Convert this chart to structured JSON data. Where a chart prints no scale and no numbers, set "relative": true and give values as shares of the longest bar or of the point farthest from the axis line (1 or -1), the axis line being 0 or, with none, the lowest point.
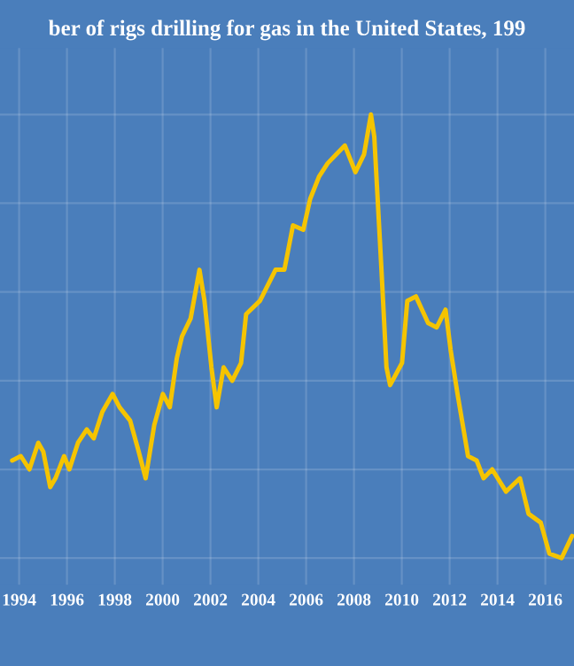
{
  "chart_data": {
    "type": "line",
    "title": "ber of rigs drilling for gas in the United States, 199",
    "relative": true,
    "grid": true,
    "x": [
      1993.71,
      1994.07,
      1994.43,
      1994.8,
      1995.01,
      1995.3,
      1995.52,
      1995.88,
      1996.1,
      1996.46,
      1996.83,
      1997.12,
      1997.48,
      1997.91,
      1998.2,
      1998.64,
      1999.0,
      1999.29,
      1999.65,
      2000.01,
      2000.3,
      2000.59,
      2000.81,
      2001.17,
      2001.54,
      2001.75,
      2002.04,
      2002.26,
      2002.55,
      2002.91,
      2003.28,
      2003.49,
      2004.07,
      2004.72,
      2005.09,
      2005.45,
      2005.88,
      2006.17,
      2006.54,
      2006.9,
      2007.26,
      2007.62,
      2008.06,
      2008.42,
      2008.71,
      2008.85,
      2009.14,
      2009.36,
      2009.51,
      2010.01,
      2010.23,
      2010.59,
      2011.1,
      2011.46,
      2011.83,
      2012.04,
      2012.33,
      2012.77,
      2013.13,
      2013.42,
      2013.78,
      2014.36,
      2014.94,
      2015.3,
      2015.81,
      2016.17,
      2016.68,
      2017.12
    ],
    "series": [
      {
        "color": "#f5c400",
        "values": [
          0.22,
          0.23,
          0.2,
          0.26,
          0.24,
          0.16,
          0.18,
          0.23,
          0.2,
          0.26,
          0.29,
          0.27,
          0.33,
          0.37,
          0.34,
          0.31,
          0.24,
          0.18,
          0.3,
          0.37,
          0.34,
          0.45,
          0.5,
          0.54,
          0.65,
          0.58,
          0.43,
          0.34,
          0.43,
          0.4,
          0.44,
          0.55,
          0.58,
          0.65,
          0.65,
          0.75,
          0.74,
          0.81,
          0.86,
          0.89,
          0.91,
          0.93,
          0.87,
          0.91,
          1,
          0.95,
          0.66,
          0.43,
          0.39,
          0.44,
          0.58,
          0.59,
          0.53,
          0.52,
          0.56,
          0.47,
          0.37,
          0.23,
          0.22,
          0.18,
          0.2,
          0.15,
          0.18,
          0.1,
          0.08,
          0.01,
          0,
          0.05
        ]
      }
    ],
    "xlim": [
      1993.2,
      2017.2
    ],
    "xticks": [
      1994,
      1996,
      1998,
      2000,
      2002,
      2004,
      2006,
      2008,
      2010,
      2012,
      2014,
      2016
    ]
  }
}
